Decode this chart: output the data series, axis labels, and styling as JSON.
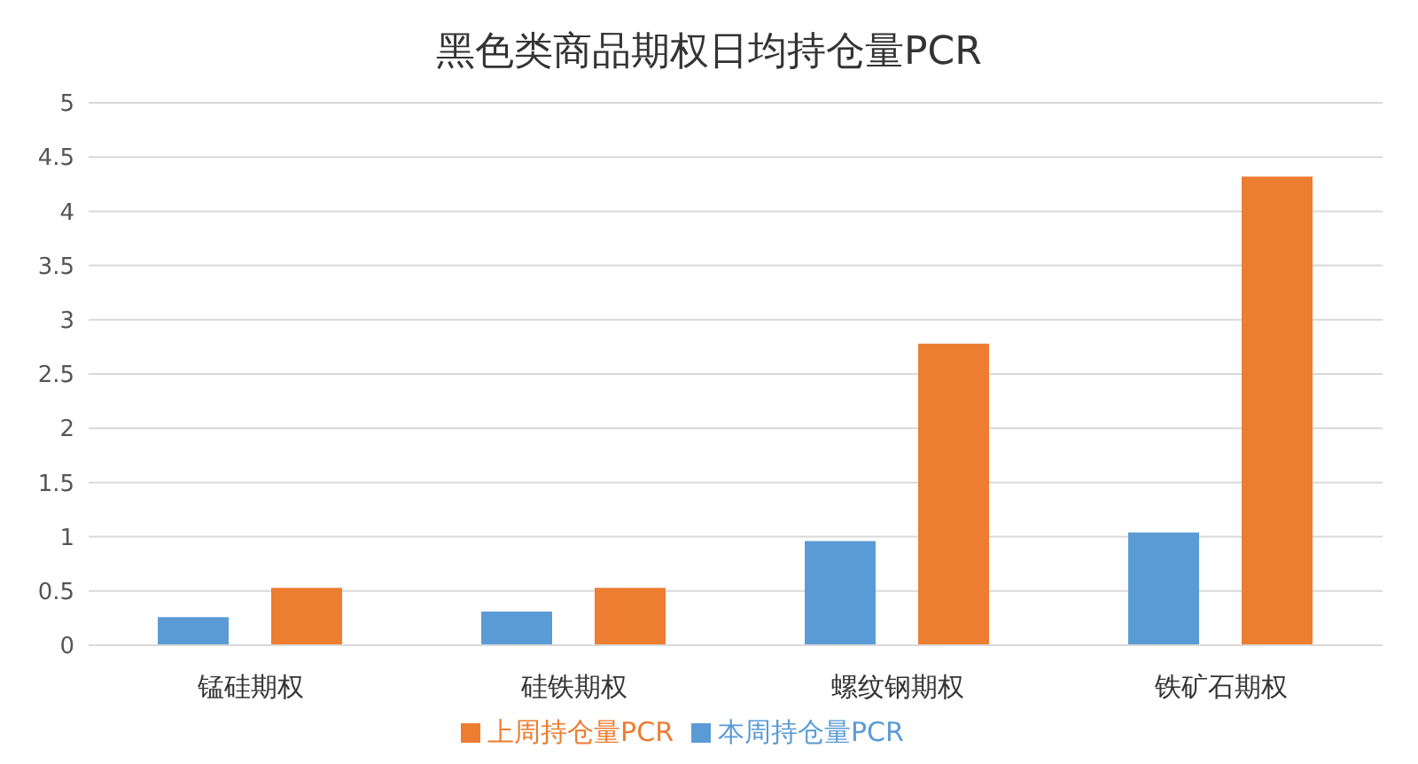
{
  "chart_data": {
    "type": "bar",
    "title": "黑色类商品期权日均持仓量PCR",
    "categories": [
      "锰硅期权",
      "硅铁期权",
      "螺纹钢期权",
      "铁矿石期权"
    ],
    "series": [
      {
        "name": "本周持仓量PCR",
        "color": "#5b9bd5",
        "values": [
          0.26,
          0.31,
          0.96,
          1.04
        ]
      },
      {
        "name": "上周持仓量PCR",
        "color": "#ed7d31",
        "values": [
          0.53,
          0.53,
          2.78,
          4.32
        ]
      }
    ],
    "ylim": [
      0,
      5
    ],
    "yticks": [
      0,
      0.5,
      1,
      1.5,
      2,
      2.5,
      3,
      3.5,
      4,
      4.5,
      5
    ],
    "grid": "y",
    "legend": "bottom"
  }
}
